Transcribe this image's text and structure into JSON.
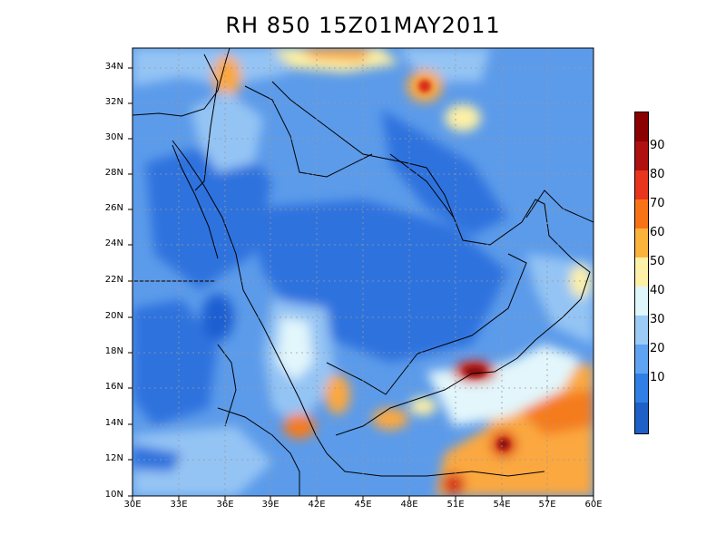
{
  "title": "RH 850  15Z01MAY2011",
  "map": {
    "lon_range": [
      30,
      60
    ],
    "lat_range": [
      10,
      35
    ],
    "lat_ticks": [
      "34N",
      "32N",
      "30N",
      "28N",
      "26N",
      "24N",
      "22N",
      "20N",
      "18N",
      "16N",
      "14N",
      "12N",
      "10N"
    ],
    "lon_ticks": [
      "30E",
      "33E",
      "36E",
      "39E",
      "42E",
      "45E",
      "48E",
      "51E",
      "54E",
      "57E",
      "60E"
    ],
    "grid": "dotted",
    "region": "Arabian Peninsula"
  },
  "colorbar": {
    "labels": [
      "10",
      "20",
      "30",
      "40",
      "50",
      "60",
      "70",
      "80",
      "90"
    ],
    "colors": [
      "#1e5fc8",
      "#2f7fe6",
      "#5ea4f2",
      "#9ccbf7",
      "#dff6fb",
      "#fdf1a8",
      "#fcb33c",
      "#f97316",
      "#e8351c",
      "#b01010",
      "#8b0000"
    ]
  },
  "fill_colors": {
    "ocean_blue": "#5c9bea",
    "mid_blue": "#2f72de",
    "dark_blue": "#1f5fd2",
    "light_blue": "#94c4f4",
    "pale": "#e2f6fb",
    "yellow": "#fdf0a6",
    "orange": "#fba840",
    "deep_orange": "#f57b1c",
    "red": "#d52b16",
    "dark_red": "#8c0a0a"
  }
}
